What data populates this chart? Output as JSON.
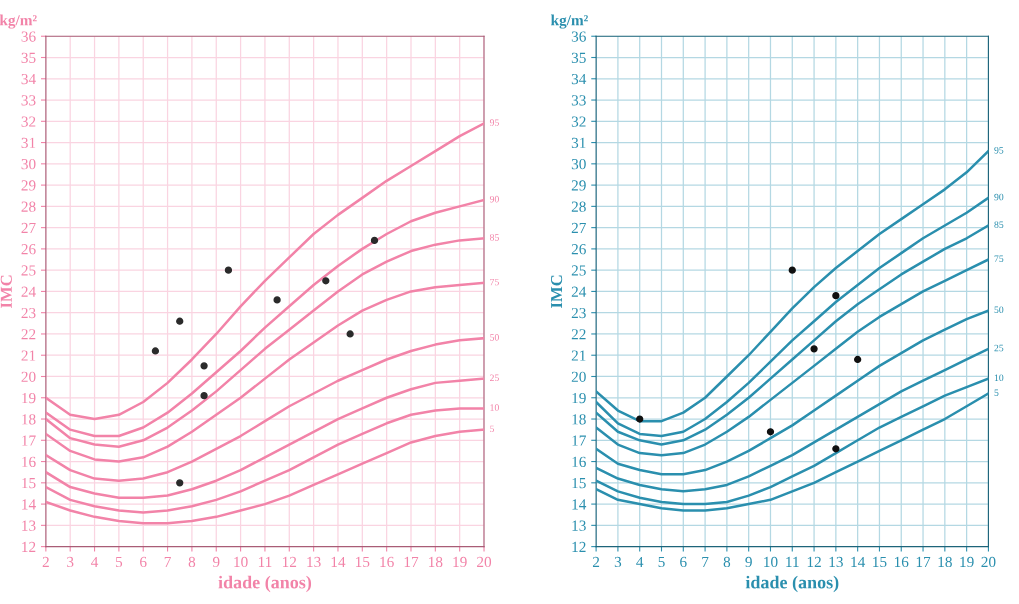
{
  "chart_data": [
    {
      "type": "line",
      "ylabel": "IMC",
      "xlabel": "idade (anos)",
      "annotations": [
        "kg/m²"
      ],
      "x": [
        2,
        3,
        4,
        5,
        6,
        7,
        8,
        9,
        10,
        11,
        12,
        13,
        14,
        15,
        16,
        17,
        18,
        19,
        20
      ],
      "xlim": [
        2,
        20
      ],
      "xticks": [
        2,
        3,
        4,
        5,
        6,
        7,
        8,
        9,
        10,
        11,
        12,
        13,
        14,
        15,
        16,
        17,
        18,
        19,
        20
      ],
      "ylim": [
        12,
        36
      ],
      "yticks": [
        12,
        13,
        14,
        15,
        16,
        17,
        18,
        19,
        20,
        21,
        22,
        23,
        24,
        25,
        26,
        27,
        28,
        29,
        30,
        31,
        32,
        33,
        34,
        35,
        36
      ],
      "grid": true,
      "legend": false,
      "marker": "none",
      "line_style": "solid",
      "series": [
        {
          "name": "95",
          "color": "#f283a8",
          "values": [
            19.0,
            18.2,
            18.0,
            18.2,
            18.8,
            19.7,
            20.8,
            22.0,
            23.3,
            24.5,
            25.6,
            26.7,
            27.6,
            28.4,
            29.2,
            29.9,
            30.6,
            31.3,
            31.9
          ]
        },
        {
          "name": "90",
          "color": "#f283a8",
          "values": [
            18.3,
            17.5,
            17.2,
            17.2,
            17.6,
            18.3,
            19.2,
            20.2,
            21.2,
            22.3,
            23.3,
            24.3,
            25.2,
            26.0,
            26.7,
            27.3,
            27.7,
            28.0,
            28.3
          ]
        },
        {
          "name": "85",
          "color": "#f283a8",
          "values": [
            18.0,
            17.1,
            16.8,
            16.7,
            17.0,
            17.6,
            18.4,
            19.3,
            20.3,
            21.3,
            22.2,
            23.1,
            24.0,
            24.8,
            25.4,
            25.9,
            26.2,
            26.4,
            26.5
          ]
        },
        {
          "name": "75",
          "color": "#f283a8",
          "values": [
            17.3,
            16.5,
            16.1,
            16.0,
            16.2,
            16.7,
            17.4,
            18.2,
            19.0,
            19.9,
            20.8,
            21.6,
            22.4,
            23.1,
            23.6,
            24.0,
            24.2,
            24.3,
            24.4
          ]
        },
        {
          "name": "50",
          "color": "#f283a8",
          "values": [
            16.3,
            15.6,
            15.2,
            15.1,
            15.2,
            15.5,
            16.0,
            16.6,
            17.2,
            17.9,
            18.6,
            19.2,
            19.8,
            20.3,
            20.8,
            21.2,
            21.5,
            21.7,
            21.8
          ]
        },
        {
          "name": "25",
          "color": "#f283a8",
          "values": [
            15.5,
            14.8,
            14.5,
            14.3,
            14.3,
            14.4,
            14.7,
            15.1,
            15.6,
            16.2,
            16.8,
            17.4,
            18.0,
            18.5,
            19.0,
            19.4,
            19.7,
            19.8,
            19.9
          ]
        },
        {
          "name": "10",
          "color": "#f283a8",
          "values": [
            14.8,
            14.2,
            13.9,
            13.7,
            13.6,
            13.7,
            13.9,
            14.2,
            14.6,
            15.1,
            15.6,
            16.2,
            16.8,
            17.3,
            17.8,
            18.2,
            18.4,
            18.5,
            18.5
          ]
        },
        {
          "name": "5",
          "color": "#f283a8",
          "values": [
            14.1,
            13.7,
            13.4,
            13.2,
            13.1,
            13.1,
            13.2,
            13.4,
            13.7,
            14.0,
            14.4,
            14.9,
            15.4,
            15.9,
            16.4,
            16.9,
            17.2,
            17.4,
            17.5
          ]
        },
        {
          "type": "scatter",
          "marker": "circle",
          "color": "#2b2b2b",
          "x": [
            6.5,
            7.5,
            7.5,
            8.5,
            8.5,
            9.5,
            11.5,
            13.5,
            14.5,
            15.5
          ],
          "values": [
            21.2,
            22.6,
            15.0,
            20.5,
            19.1,
            25.0,
            23.6,
            24.5,
            22.0,
            26.4
          ]
        }
      ]
    },
    {
      "type": "line",
      "ylabel": "IMC",
      "xlabel": "idade (anos)",
      "annotations": [
        "kg/m²"
      ],
      "x": [
        2,
        3,
        4,
        5,
        6,
        7,
        8,
        9,
        10,
        11,
        12,
        13,
        14,
        15,
        16,
        17,
        18,
        19,
        20
      ],
      "xlim": [
        2,
        20
      ],
      "xticks": [
        2,
        3,
        4,
        5,
        6,
        7,
        8,
        9,
        10,
        11,
        12,
        13,
        14,
        15,
        16,
        17,
        18,
        19,
        20
      ],
      "ylim": [
        12,
        36
      ],
      "yticks": [
        12,
        13,
        14,
        15,
        16,
        17,
        18,
        19,
        20,
        21,
        22,
        23,
        24,
        25,
        26,
        27,
        28,
        29,
        30,
        31,
        32,
        33,
        34,
        35,
        36
      ],
      "grid": true,
      "legend": false,
      "marker": "none",
      "line_style": "solid",
      "series": [
        {
          "name": "95",
          "color": "#2a8fae",
          "values": [
            19.3,
            18.4,
            17.9,
            17.9,
            18.3,
            19.0,
            20.0,
            21.0,
            22.1,
            23.2,
            24.2,
            25.1,
            25.9,
            26.7,
            27.4,
            28.1,
            28.8,
            29.6,
            30.6
          ]
        },
        {
          "name": "90",
          "color": "#2a8fae",
          "values": [
            18.8,
            17.8,
            17.3,
            17.2,
            17.4,
            18.0,
            18.8,
            19.7,
            20.7,
            21.7,
            22.6,
            23.5,
            24.3,
            25.1,
            25.8,
            26.5,
            27.1,
            27.7,
            28.4
          ]
        },
        {
          "name": "85",
          "color": "#2a8fae",
          "values": [
            18.3,
            17.4,
            17.0,
            16.8,
            17.0,
            17.5,
            18.2,
            19.0,
            19.9,
            20.8,
            21.7,
            22.6,
            23.4,
            24.1,
            24.8,
            25.4,
            26.0,
            26.5,
            27.1
          ]
        },
        {
          "name": "75",
          "color": "#2a8fae",
          "values": [
            17.6,
            16.8,
            16.4,
            16.3,
            16.4,
            16.8,
            17.4,
            18.1,
            18.9,
            19.7,
            20.5,
            21.3,
            22.1,
            22.8,
            23.4,
            24.0,
            24.5,
            25.0,
            25.5
          ]
        },
        {
          "name": "50",
          "color": "#2a8fae",
          "values": [
            16.6,
            15.9,
            15.6,
            15.4,
            15.4,
            15.6,
            16.0,
            16.5,
            17.1,
            17.7,
            18.4,
            19.1,
            19.8,
            20.5,
            21.1,
            21.7,
            22.2,
            22.7,
            23.1
          ]
        },
        {
          "name": "25",
          "color": "#2a8fae",
          "values": [
            15.7,
            15.2,
            14.9,
            14.7,
            14.6,
            14.7,
            14.9,
            15.3,
            15.8,
            16.3,
            16.9,
            17.5,
            18.1,
            18.7,
            19.3,
            19.8,
            20.3,
            20.8,
            21.3
          ]
        },
        {
          "name": "10",
          "color": "#2a8fae",
          "values": [
            15.1,
            14.6,
            14.3,
            14.1,
            14.0,
            14.0,
            14.1,
            14.4,
            14.8,
            15.3,
            15.8,
            16.4,
            17.0,
            17.6,
            18.1,
            18.6,
            19.1,
            19.5,
            19.9
          ]
        },
        {
          "name": "5",
          "color": "#2a8fae",
          "values": [
            14.7,
            14.2,
            14.0,
            13.8,
            13.7,
            13.7,
            13.8,
            14.0,
            14.2,
            14.6,
            15.0,
            15.5,
            16.0,
            16.5,
            17.0,
            17.5,
            18.0,
            18.6,
            19.2
          ]
        },
        {
          "type": "scatter",
          "marker": "circle",
          "color": "#111111",
          "x": [
            4,
            10,
            11,
            12,
            13,
            13,
            14
          ],
          "values": [
            18.0,
            17.4,
            25.0,
            21.3,
            23.8,
            16.6,
            20.8
          ]
        }
      ]
    }
  ]
}
